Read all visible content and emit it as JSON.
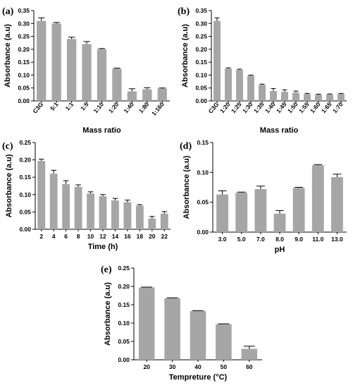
{
  "chart_data": [
    {
      "panel": "(a)",
      "type": "bar",
      "categories": [
        "C3G",
        "5:1",
        "1:1",
        "1:5",
        "1:10",
        "1:20",
        "1:40",
        "1:80",
        "1:160"
      ],
      "values": [
        0.31,
        0.3,
        0.24,
        0.22,
        0.2,
        0.125,
        0.037,
        0.045,
        0.048
      ],
      "errors": [
        0.012,
        0.004,
        0.007,
        0.01,
        0.003,
        0.002,
        0.01,
        0.006,
        0.002
      ],
      "xlabel": "Mass ratio",
      "ylabel": "Absorbance (a.u)",
      "ylim": [
        0,
        0.35
      ],
      "yticks": [
        0.0,
        0.05,
        0.1,
        0.15,
        0.2,
        0.25,
        0.3,
        0.35
      ],
      "ytick_labels": [
        "0.00",
        "0.05",
        "0.10",
        "0.15",
        "0.20",
        "0.25",
        "0.30",
        "0.35"
      ],
      "rotate_xticks": true
    },
    {
      "panel": "(b)",
      "type": "bar",
      "categories": [
        "C3G",
        "1:20",
        "1:25",
        "1:30",
        "1:35",
        "1:40",
        "1:45",
        "1:50",
        "1:55",
        "1:60",
        "1:65",
        "1:70"
      ],
      "values": [
        0.31,
        0.125,
        0.12,
        0.098,
        0.062,
        0.038,
        0.035,
        0.032,
        0.026,
        0.024,
        0.025,
        0.027
      ],
      "errors": [
        0.012,
        0.003,
        0.003,
        0.002,
        0.003,
        0.01,
        0.008,
        0.006,
        0.003,
        0.002,
        0.002,
        0.002
      ],
      "xlabel": "Mass ratio",
      "ylabel": "Absorbance (a.u)",
      "ylim": [
        0,
        0.35
      ],
      "yticks": [
        0.0,
        0.05,
        0.1,
        0.15,
        0.2,
        0.25,
        0.3,
        0.35
      ],
      "ytick_labels": [
        "0.00",
        "0.05",
        "0.10",
        "0.15",
        "0.20",
        "0.25",
        "0.30",
        "0.35"
      ],
      "rotate_xticks": true
    },
    {
      "panel": "(c)",
      "type": "bar",
      "categories": [
        "2",
        "4",
        "6",
        "8",
        "10",
        "12",
        "14",
        "16",
        "18",
        "20",
        "22"
      ],
      "values": [
        0.197,
        0.16,
        0.13,
        0.122,
        0.103,
        0.095,
        0.083,
        0.078,
        0.068,
        0.031,
        0.045
      ],
      "errors": [
        0.005,
        0.01,
        0.01,
        0.006,
        0.005,
        0.005,
        0.006,
        0.006,
        0.003,
        0.006,
        0.006
      ],
      "xlabel": "Time (h)",
      "ylabel": "Absorbance (a.u)",
      "ylim": [
        0,
        0.25
      ],
      "yticks": [
        0.0,
        0.05,
        0.1,
        0.15,
        0.2,
        0.25
      ],
      "ytick_labels": [
        "0.00",
        "0.05",
        "0.10",
        "0.15",
        "0.20",
        "0.25"
      ],
      "rotate_xticks": false
    },
    {
      "panel": "(d)",
      "type": "bar",
      "categories": [
        "3.0",
        "5.0",
        "7.0",
        "8.0",
        "9.0",
        "11.0",
        "13.0"
      ],
      "values": [
        0.063,
        0.066,
        0.072,
        0.031,
        0.074,
        0.112,
        0.092
      ],
      "errors": [
        0.006,
        0.001,
        0.005,
        0.005,
        0.001,
        0.001,
        0.005
      ],
      "xlabel": "pH",
      "ylabel": "Absorbance (a.u)",
      "ylim": [
        0,
        0.15
      ],
      "yticks": [
        0.0,
        0.05,
        0.1,
        0.15
      ],
      "ytick_labels": [
        "0.00",
        "0.05",
        "0.10",
        "0.15"
      ],
      "rotate_xticks": false
    },
    {
      "panel": "(e)",
      "type": "bar",
      "categories": [
        "20",
        "30",
        "40",
        "50",
        "60"
      ],
      "values": [
        0.197,
        0.168,
        0.133,
        0.097,
        0.03
      ],
      "errors": [
        0.001,
        0.001,
        0.001,
        0.001,
        0.007
      ],
      "xlabel": "Tempreture (°C)",
      "ylabel": "Absorbance (a.u)",
      "ylim": [
        0,
        0.25
      ],
      "yticks": [
        0.0,
        0.05,
        0.1,
        0.15,
        0.2,
        0.25
      ],
      "ytick_labels": [
        "0.00",
        "0.05",
        "0.10",
        "0.15",
        "0.20",
        "0.25"
      ],
      "rotate_xticks": false
    }
  ],
  "colors": {
    "bar": "#a6a6a6",
    "axis": "#000000"
  }
}
